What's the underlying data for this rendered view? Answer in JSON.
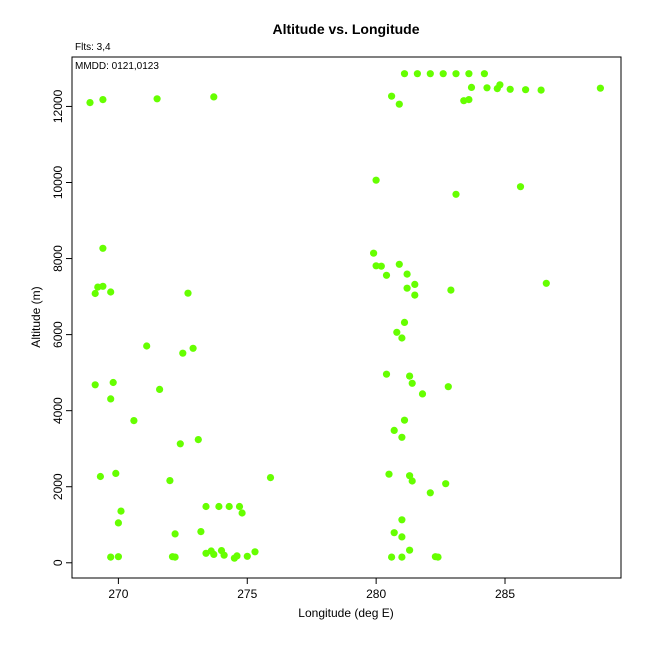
{
  "chart_data": {
    "type": "scatter",
    "title": "Altitude vs. Longitude",
    "annotations": [
      "Flts: 3,4",
      "MMDD: 0121,0123"
    ],
    "xlabel": "Longitude (deg E)",
    "ylabel": "Altitude (m)",
    "xlim": [
      268.2,
      289.5
    ],
    "ylim": [
      -400,
      13300
    ],
    "xticks": [
      270,
      275,
      280,
      285
    ],
    "yticks": [
      0,
      2000,
      4000,
      6000,
      8000,
      10000,
      12000
    ],
    "grid": false,
    "point_color": "#66ff00",
    "series": [
      {
        "points": [
          [
            268.9,
            12100
          ],
          [
            269.4,
            12180
          ],
          [
            271.5,
            12200
          ],
          [
            273.7,
            12250
          ],
          [
            269.4,
            8270
          ],
          [
            269.2,
            7250
          ],
          [
            269.4,
            7270
          ],
          [
            269.1,
            7080
          ],
          [
            269.7,
            7120
          ],
          [
            272.7,
            7090
          ],
          [
            271.1,
            5700
          ],
          [
            272.9,
            5640
          ],
          [
            272.5,
            5510
          ],
          [
            269.1,
            4680
          ],
          [
            269.8,
            4740
          ],
          [
            271.6,
            4560
          ],
          [
            269.7,
            4310
          ],
          [
            270.6,
            3740
          ],
          [
            273.1,
            3240
          ],
          [
            272.4,
            3130
          ],
          [
            269.9,
            2350
          ],
          [
            269.3,
            2270
          ],
          [
            272.0,
            2160
          ],
          [
            275.9,
            2240
          ],
          [
            270.1,
            1360
          ],
          [
            270.0,
            1050
          ],
          [
            273.4,
            1480
          ],
          [
            273.9,
            1480
          ],
          [
            274.3,
            1480
          ],
          [
            274.7,
            1480
          ],
          [
            274.8,
            1310
          ],
          [
            272.2,
            760
          ],
          [
            273.2,
            820
          ],
          [
            269.7,
            150
          ],
          [
            270.0,
            160
          ],
          [
            272.1,
            160
          ],
          [
            272.2,
            150
          ],
          [
            273.4,
            250
          ],
          [
            273.6,
            310
          ],
          [
            273.7,
            220
          ],
          [
            274.0,
            320
          ],
          [
            274.1,
            200
          ],
          [
            274.5,
            120
          ],
          [
            274.6,
            180
          ],
          [
            275.0,
            170
          ],
          [
            275.3,
            290
          ],
          [
            280.0,
            10060
          ],
          [
            280.6,
            12270
          ],
          [
            280.9,
            12060
          ],
          [
            281.1,
            12860
          ],
          [
            281.6,
            12860
          ],
          [
            282.1,
            12860
          ],
          [
            282.6,
            12860
          ],
          [
            283.1,
            12860
          ],
          [
            283.6,
            12860
          ],
          [
            284.2,
            12860
          ],
          [
            283.4,
            12150
          ],
          [
            283.6,
            12180
          ],
          [
            283.7,
            12500
          ],
          [
            284.3,
            12490
          ],
          [
            284.7,
            12470
          ],
          [
            284.8,
            12570
          ],
          [
            285.2,
            12450
          ],
          [
            285.8,
            12440
          ],
          [
            286.4,
            12430
          ],
          [
            288.7,
            12480
          ],
          [
            283.1,
            9690
          ],
          [
            285.6,
            9890
          ],
          [
            279.9,
            8140
          ],
          [
            280.0,
            7810
          ],
          [
            280.2,
            7800
          ],
          [
            280.4,
            7560
          ],
          [
            280.9,
            7850
          ],
          [
            281.2,
            7590
          ],
          [
            281.2,
            7220
          ],
          [
            281.5,
            7320
          ],
          [
            281.5,
            7040
          ],
          [
            282.9,
            7170
          ],
          [
            286.6,
            7350
          ],
          [
            281.1,
            6320
          ],
          [
            280.8,
            6060
          ],
          [
            281.0,
            5910
          ],
          [
            280.4,
            4960
          ],
          [
            281.3,
            4910
          ],
          [
            281.4,
            4720
          ],
          [
            282.8,
            4630
          ],
          [
            281.8,
            4440
          ],
          [
            281.1,
            3750
          ],
          [
            280.7,
            3480
          ],
          [
            281.0,
            3300
          ],
          [
            280.5,
            2330
          ],
          [
            281.3,
            2290
          ],
          [
            281.4,
            2150
          ],
          [
            282.7,
            2080
          ],
          [
            282.1,
            1840
          ],
          [
            281.0,
            1130
          ],
          [
            280.7,
            790
          ],
          [
            281.0,
            680
          ],
          [
            281.3,
            330
          ],
          [
            280.6,
            150
          ],
          [
            281.0,
            150
          ],
          [
            282.3,
            160
          ],
          [
            282.4,
            150
          ]
        ]
      }
    ]
  }
}
